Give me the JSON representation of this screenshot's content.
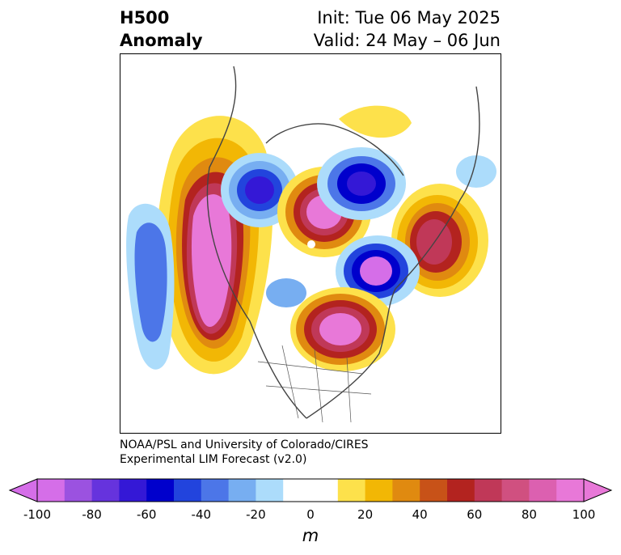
{
  "header": {
    "field": "H500",
    "kind": "Anomaly",
    "init": "Init: Tue 06 May 2025",
    "valid": "Valid: 24 May – 06 Jun"
  },
  "credit": {
    "line1": "NOAA/PSL and University of Colorado/CIRES",
    "line2": "Experimental LIM Forecast (v2.0)"
  },
  "colorbar": {
    "units": "m",
    "ticks": [
      "-100",
      "-80",
      "-60",
      "-40",
      "-20",
      "0",
      "20",
      "40",
      "60",
      "80",
      "100"
    ],
    "colors": [
      "#d56ee8",
      "#9b52e0",
      "#6633dd",
      "#3418d6",
      "#0000cc",
      "#2244dd",
      "#4c76e8",
      "#77aef1",
      "#acdcfb",
      "#ffffff",
      "#ffffff",
      "#fde14b",
      "#f2b705",
      "#e08a10",
      "#c85218",
      "#b3231f",
      "#c03858",
      "#d05080",
      "#dc60b0",
      "#e878d8"
    ]
  }
}
